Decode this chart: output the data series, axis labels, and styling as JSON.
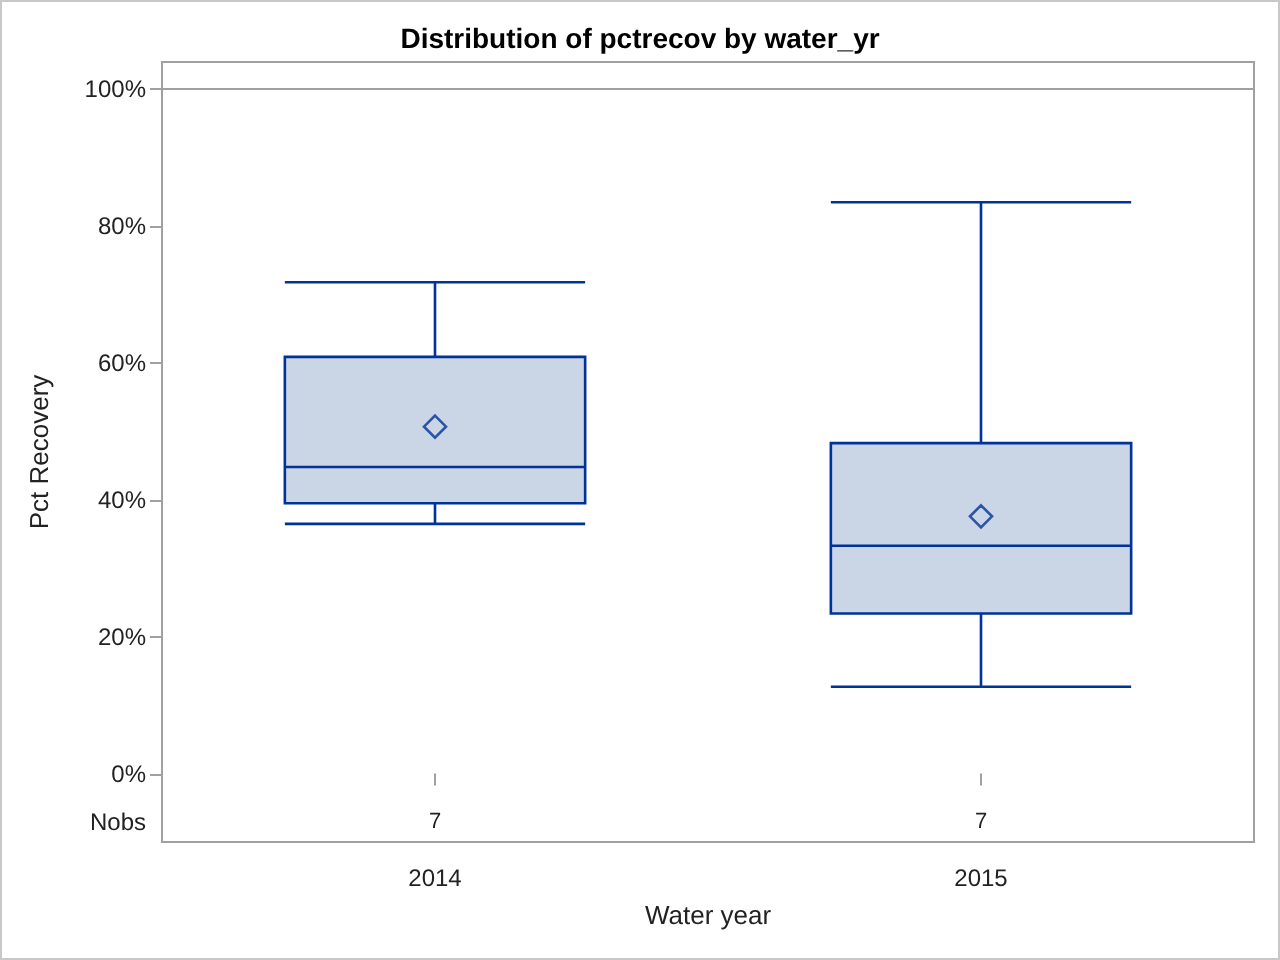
{
  "chart_data": {
    "type": "box",
    "title": "Distribution of pctrecov by water_yr",
    "xlabel": "Water year",
    "ylabel": "Pct Recovery",
    "categories": [
      "2014",
      "2015"
    ],
    "boxes": [
      {
        "low": 36.5,
        "q1": 39.5,
        "median": 44.8,
        "q3": 60.9,
        "high": 71.8,
        "mean": 50.7
      },
      {
        "low": 12.7,
        "q1": 23.4,
        "median": 33.3,
        "q3": 48.3,
        "high": 83.5,
        "mean": 37.6
      }
    ],
    "color": "#cad5e5",
    "marker": "diamond",
    "ylim": [
      -10,
      104
    ],
    "yticks": [
      {
        "value": 0,
        "label": "0%"
      },
      {
        "value": 20,
        "label": "20%"
      },
      {
        "value": 40,
        "label": "40%"
      },
      {
        "value": 60,
        "label": "60%"
      },
      {
        "value": 80,
        "label": "80%"
      },
      {
        "value": 100,
        "label": "100%"
      }
    ],
    "ref_lines": [
      {
        "axis": "y",
        "value": 100,
        "color": "#a0a0a0"
      }
    ],
    "annotations": [
      "Nobs",
      "7",
      "7"
    ],
    "grid": false
  }
}
